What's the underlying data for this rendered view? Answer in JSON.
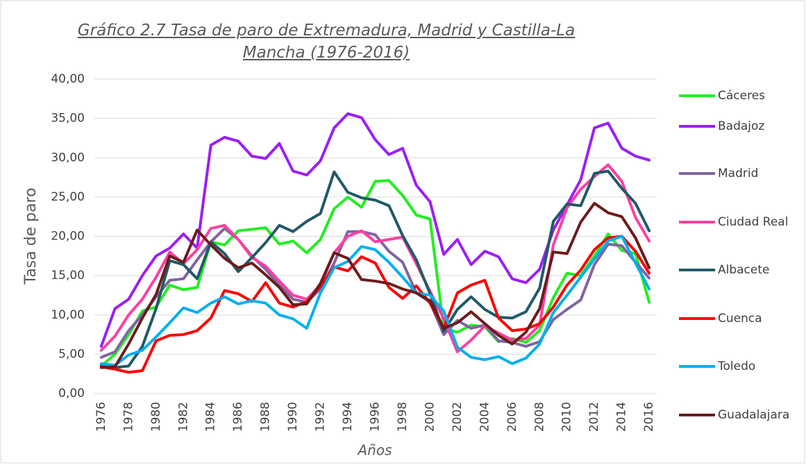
{
  "chart_data": {
    "type": "line",
    "title": "Gráfico 2.7 Tasa de paro de Extremadura, Madrid y Castilla-La Mancha (1976-2016)",
    "y_label": "Tasa de paro",
    "x_label": "Años",
    "categories": [
      "1976",
      null,
      "1978",
      null,
      "1980",
      null,
      "1982",
      null,
      "1984",
      null,
      "1986",
      null,
      "1988",
      null,
      "1990",
      null,
      "1992",
      null,
      "1994",
      null,
      "1996",
      null,
      "1998",
      null,
      "2000",
      null,
      "2002",
      null,
      "2004",
      null,
      "2006",
      null,
      "2008",
      null,
      "2010",
      null,
      "2012",
      null,
      "2014",
      null,
      "2016"
    ],
    "ylim": [
      0,
      40
    ],
    "yticks": [
      {
        "value": 0,
        "label": "0,00"
      },
      {
        "value": 5,
        "label": "5,00"
      },
      {
        "value": 10,
        "label": "10,00"
      },
      {
        "value": 15,
        "label": "15,00"
      },
      {
        "value": 20,
        "label": "20,00"
      },
      {
        "value": 25,
        "label": "25,00"
      },
      {
        "value": 30,
        "label": "30,00"
      },
      {
        "value": 35,
        "label": "35,00"
      },
      {
        "value": 40,
        "label": "40,00"
      }
    ],
    "grid": true,
    "legend": "right",
    "series": [
      {
        "name": "Cáceres",
        "color": "#22ee22",
        "values": [
          3.5,
          5.0,
          7.5,
          10.5,
          11.0,
          13.8,
          13.2,
          13.5,
          19.3,
          18.9,
          20.7,
          20.9,
          21.1,
          19.0,
          19.4,
          17.9,
          19.6,
          23.5,
          25.0,
          23.7,
          27.0,
          27.1,
          25.2,
          22.7,
          22.2,
          8.3,
          7.8,
          8.7,
          8.5,
          6.6,
          7.0,
          6.5,
          8.0,
          12.2,
          15.3,
          15.0,
          17.5,
          20.3,
          18.2,
          17.8,
          11.6
        ]
      },
      {
        "name": "Badajoz",
        "color": "#9b1ff5",
        "values": [
          6.0,
          10.8,
          12.0,
          15.0,
          17.5,
          18.5,
          20.3,
          18.5,
          31.6,
          32.6,
          32.1,
          30.2,
          29.9,
          31.8,
          28.3,
          27.8,
          29.6,
          33.8,
          35.6,
          35.1,
          32.3,
          30.4,
          31.2,
          26.5,
          24.4,
          17.7,
          19.6,
          16.4,
          18.1,
          17.4,
          14.6,
          14.1,
          15.8,
          20.8,
          24.0,
          27.2,
          33.8,
          34.4,
          31.2,
          30.2,
          29.7
        ]
      },
      {
        "name": "Madrid",
        "color": "#8064a2",
        "values": [
          4.6,
          5.3,
          8.0,
          10.0,
          12.3,
          14.4,
          14.6,
          17.0,
          19.3,
          21.0,
          19.6,
          17.5,
          15.8,
          13.8,
          12.0,
          11.6,
          13.3,
          16.6,
          20.6,
          20.6,
          20.2,
          18.1,
          16.7,
          12.8,
          11.6,
          7.5,
          9.3,
          8.3,
          8.7,
          6.7,
          6.5,
          6.0,
          6.6,
          9.4,
          10.7,
          11.9,
          16.4,
          19.0,
          18.8,
          16.7,
          14.7
        ]
      },
      {
        "name": "Ciudad Real",
        "color": "#ff3fa0",
        "values": [
          5.5,
          7.3,
          10.0,
          12.0,
          14.8,
          18.0,
          16.5,
          18.3,
          21.0,
          21.4,
          19.6,
          17.3,
          16.2,
          14.3,
          12.5,
          12.0,
          13.8,
          17.9,
          20.0,
          20.7,
          19.3,
          19.6,
          19.9,
          16.5,
          13.0,
          9.5,
          5.3,
          6.8,
          8.6,
          7.7,
          6.8,
          7.0,
          8.7,
          18.9,
          23.6,
          26.0,
          27.6,
          29.1,
          27.0,
          22.4,
          19.4
        ]
      },
      {
        "name": "Albacete",
        "color": "#215968",
        "values": [
          3.6,
          3.3,
          3.5,
          6.0,
          10.8,
          16.9,
          16.4,
          14.6,
          19.3,
          17.8,
          15.5,
          17.3,
          19.2,
          21.4,
          20.6,
          21.9,
          22.9,
          28.2,
          25.6,
          24.9,
          24.6,
          23.9,
          20.1,
          17.0,
          12.7,
          7.9,
          10.7,
          12.3,
          10.7,
          9.7,
          9.6,
          10.4,
          13.4,
          21.9,
          24.1,
          23.9,
          28.0,
          28.3,
          26.1,
          24.2,
          20.7
        ]
      },
      {
        "name": "Cuenca",
        "color": "#ff0000",
        "values": [
          3.4,
          3.1,
          2.7,
          2.9,
          6.7,
          7.4,
          7.5,
          8.0,
          9.6,
          13.1,
          12.7,
          11.7,
          14.1,
          11.5,
          11.0,
          11.7,
          13.6,
          16.1,
          15.6,
          17.4,
          16.6,
          13.5,
          12.1,
          13.7,
          11.5,
          8.3,
          12.8,
          13.8,
          14.4,
          9.6,
          8.0,
          8.2,
          8.9,
          11.0,
          13.8,
          15.7,
          18.3,
          19.8,
          20.0,
          18.1,
          15.3
        ]
      },
      {
        "name": "Toledo",
        "color": "#00b0f0",
        "values": [
          3.8,
          3.6,
          4.9,
          5.5,
          7.2,
          9.0,
          10.9,
          10.3,
          11.5,
          12.3,
          11.4,
          11.8,
          11.5,
          10.0,
          9.5,
          8.3,
          12.8,
          16.0,
          16.8,
          18.7,
          18.3,
          16.7,
          14.8,
          12.8,
          12.5,
          10.5,
          5.9,
          4.6,
          4.3,
          4.7,
          3.8,
          4.5,
          6.3,
          10.3,
          12.5,
          14.8,
          17.1,
          19.4,
          20.0,
          16.6,
          13.3
        ]
      },
      {
        "name": "Guadalajara",
        "color": "#6b1c1c",
        "values": [
          3.3,
          3.4,
          6.3,
          9.6,
          12.6,
          17.5,
          16.7,
          20.8,
          18.9,
          17.2,
          16.0,
          16.6,
          15.1,
          13.5,
          11.3,
          11.4,
          14.0,
          17.9,
          17.2,
          14.5,
          14.3,
          14.0,
          13.3,
          12.8,
          11.8,
          8.3,
          9.0,
          10.4,
          8.9,
          7.4,
          6.3,
          7.8,
          10.8,
          18.0,
          17.8,
          21.8,
          24.2,
          23.0,
          22.5,
          19.8,
          16.0
        ]
      }
    ]
  }
}
